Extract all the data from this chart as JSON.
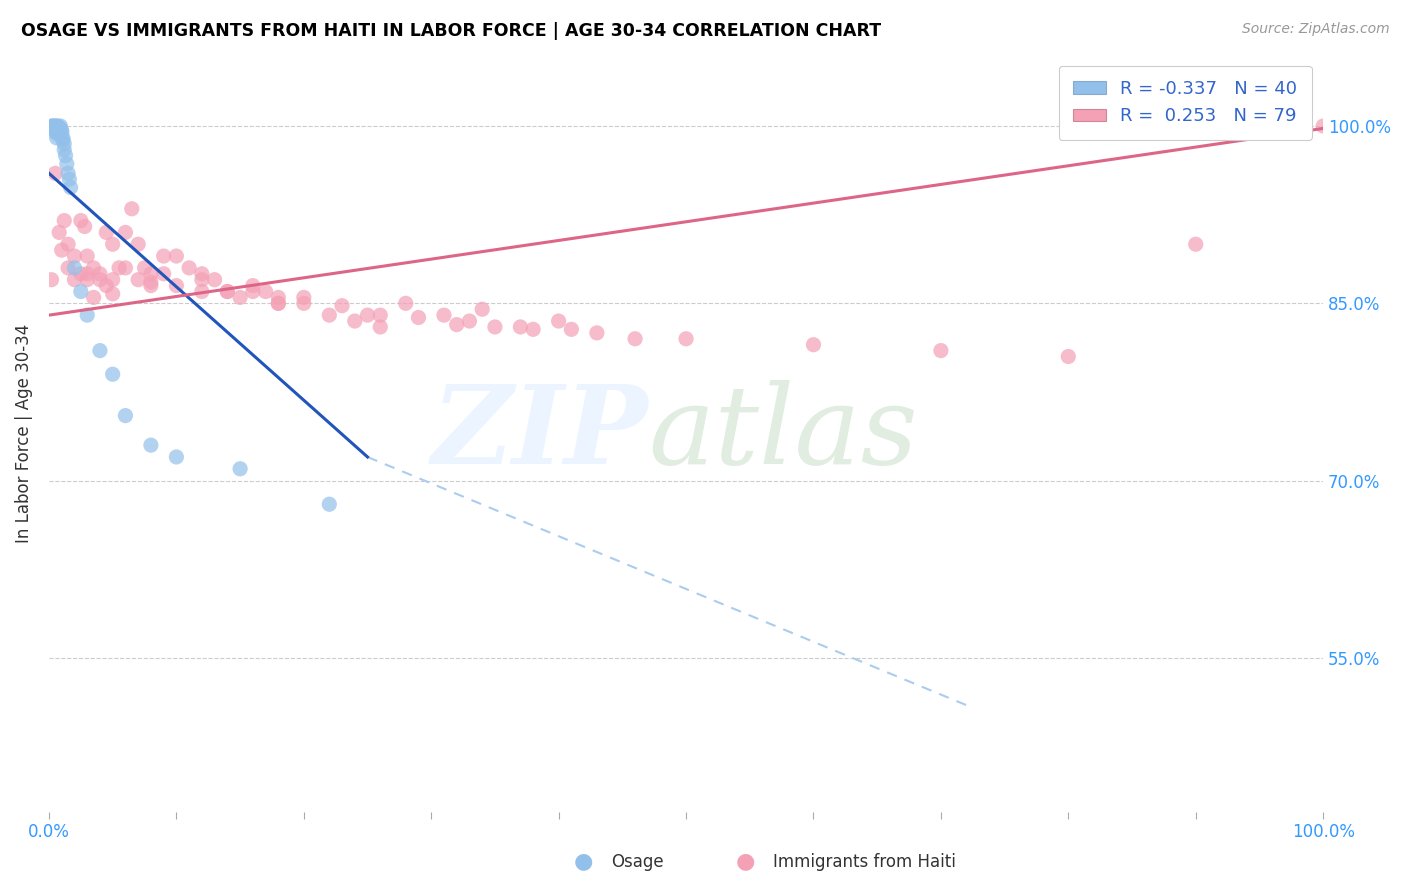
{
  "title": "OSAGE VS IMMIGRANTS FROM HAITI IN LABOR FORCE | AGE 30-34 CORRELATION CHART",
  "source": "Source: ZipAtlas.com",
  "ylabel": "In Labor Force | Age 30-34",
  "yticks": [
    "55.0%",
    "70.0%",
    "85.0%",
    "100.0%"
  ],
  "ytick_vals": [
    0.55,
    0.7,
    0.85,
    1.0
  ],
  "xlim": [
    0.0,
    1.0
  ],
  "ylim": [
    0.42,
    1.06
  ],
  "legend_r_blue": "-0.337",
  "legend_n_blue": "40",
  "legend_r_pink": "0.253",
  "legend_n_pink": "79",
  "legend_label_blue": "Osage",
  "legend_label_pink": "Immigrants from Haiti",
  "blue_color": "#92c0ea",
  "pink_color": "#f4a0b5",
  "blue_line_color": "#2255bb",
  "pink_line_color": "#dd6688",
  "blue_dash_color": "#aaccee",
  "blue_scatter_x": [
    0.002,
    0.003,
    0.003,
    0.004,
    0.004,
    0.005,
    0.005,
    0.005,
    0.006,
    0.006,
    0.006,
    0.006,
    0.007,
    0.007,
    0.007,
    0.008,
    0.008,
    0.009,
    0.009,
    0.01,
    0.01,
    0.011,
    0.011,
    0.012,
    0.012,
    0.013,
    0.014,
    0.015,
    0.016,
    0.017,
    0.02,
    0.025,
    0.03,
    0.04,
    0.05,
    0.06,
    0.08,
    0.1,
    0.15,
    0.22
  ],
  "blue_scatter_y": [
    1.0,
    1.0,
    0.998,
    1.0,
    0.998,
    1.0,
    0.995,
    0.998,
    1.0,
    0.998,
    0.995,
    0.99,
    1.0,
    0.998,
    0.993,
    0.998,
    0.995,
    1.0,
    0.998,
    0.996,
    0.995,
    0.99,
    0.988,
    0.985,
    0.98,
    0.975,
    0.968,
    0.96,
    0.955,
    0.948,
    0.88,
    0.86,
    0.84,
    0.81,
    0.79,
    0.755,
    0.73,
    0.72,
    0.71,
    0.68
  ],
  "pink_scatter_x": [
    0.002,
    0.005,
    0.008,
    0.012,
    0.015,
    0.02,
    0.025,
    0.028,
    0.03,
    0.035,
    0.04,
    0.045,
    0.05,
    0.055,
    0.06,
    0.065,
    0.07,
    0.075,
    0.08,
    0.09,
    0.1,
    0.11,
    0.12,
    0.13,
    0.14,
    0.15,
    0.16,
    0.17,
    0.18,
    0.2,
    0.22,
    0.24,
    0.26,
    0.28,
    0.31,
    0.34,
    0.37,
    0.4,
    0.43,
    0.46,
    0.01,
    0.015,
    0.02,
    0.025,
    0.03,
    0.035,
    0.04,
    0.045,
    0.05,
    0.06,
    0.07,
    0.08,
    0.09,
    0.1,
    0.12,
    0.14,
    0.16,
    0.18,
    0.2,
    0.23,
    0.26,
    0.29,
    0.32,
    0.35,
    0.38,
    0.03,
    0.05,
    0.08,
    0.12,
    0.18,
    0.25,
    0.33,
    0.41,
    0.5,
    0.6,
    0.7,
    0.8,
    0.9,
    1.0
  ],
  "pink_scatter_y": [
    0.87,
    0.96,
    0.91,
    0.92,
    0.9,
    0.89,
    0.92,
    0.915,
    0.89,
    0.88,
    0.875,
    0.91,
    0.9,
    0.88,
    0.91,
    0.93,
    0.9,
    0.88,
    0.875,
    0.89,
    0.89,
    0.88,
    0.875,
    0.87,
    0.86,
    0.855,
    0.865,
    0.86,
    0.85,
    0.855,
    0.84,
    0.835,
    0.83,
    0.85,
    0.84,
    0.845,
    0.83,
    0.835,
    0.825,
    0.82,
    0.895,
    0.88,
    0.87,
    0.875,
    0.875,
    0.855,
    0.87,
    0.865,
    0.858,
    0.88,
    0.87,
    0.868,
    0.875,
    0.865,
    0.87,
    0.86,
    0.86,
    0.855,
    0.85,
    0.848,
    0.84,
    0.838,
    0.832,
    0.83,
    0.828,
    0.87,
    0.87,
    0.865,
    0.86,
    0.85,
    0.84,
    0.835,
    0.828,
    0.82,
    0.815,
    0.81,
    0.805,
    0.9,
    1.0
  ],
  "blue_line_x0": 0.0,
  "blue_line_y0": 0.96,
  "blue_line_solid_x1": 0.25,
  "blue_line_solid_y1": 0.72,
  "blue_line_dash_x1": 0.72,
  "blue_line_dash_y1": 0.51,
  "pink_line_x0": 0.0,
  "pink_line_y0": 0.84,
  "pink_line_x1": 1.0,
  "pink_line_y1": 0.998
}
